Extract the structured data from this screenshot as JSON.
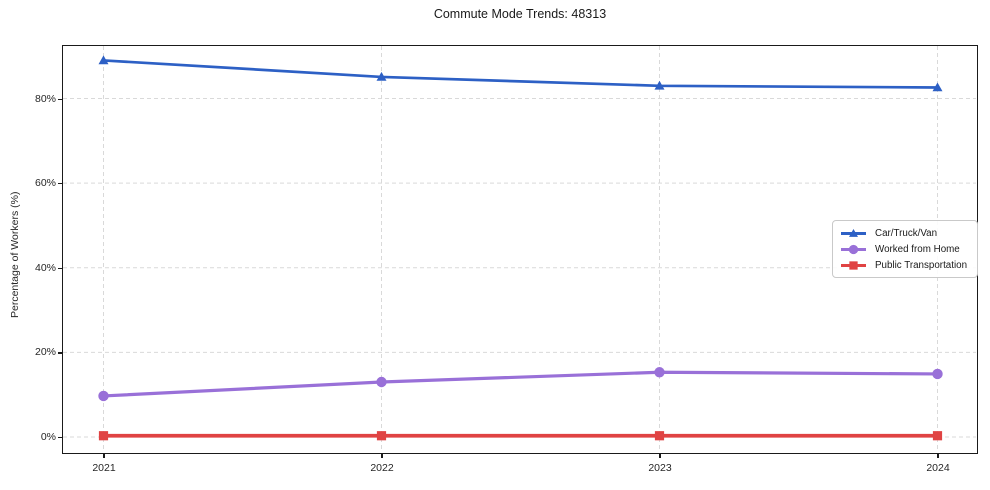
{
  "chart_data": {
    "type": "line",
    "title": "Commute Mode Trends: 48313",
    "xlabel": "",
    "ylabel": "Percentage of Workers (%)",
    "x": [
      "2021",
      "2022",
      "2023",
      "2024"
    ],
    "y_tick_labels": [
      "0%",
      "20%",
      "40%",
      "60%",
      "80%"
    ],
    "y_tick_values": [
      0,
      20,
      40,
      60,
      80
    ],
    "ylim": [
      -4,
      93
    ],
    "grid": true,
    "grid_style": "dashed",
    "legend_position": "center-right",
    "series": [
      {
        "name": "Car/Truck/Van",
        "color": "#2d60c5",
        "marker": "triangle",
        "values": [
          89.0,
          85.1,
          83.0,
          82.6
        ]
      },
      {
        "name": "Worked from Home",
        "color": "#9970d8",
        "marker": "circle",
        "values": [
          9.7,
          13.0,
          15.3,
          14.9
        ]
      },
      {
        "name": "Public Transportation",
        "color": "#e04343",
        "marker": "square",
        "values": [
          0.3,
          0.3,
          0.3,
          0.3
        ]
      }
    ]
  }
}
